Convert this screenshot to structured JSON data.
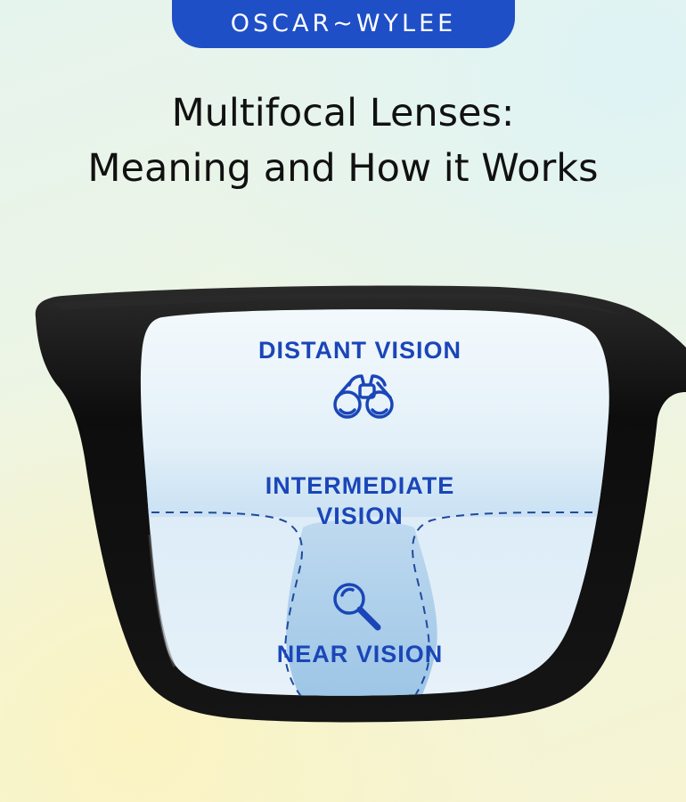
{
  "brand": {
    "logo_text": "OSCAR~WYLEE"
  },
  "heading": {
    "line1": "Multifocal Lenses:",
    "line2": "Meaning and How it Works"
  },
  "lens_zones": {
    "distant": "DISTANT VISION",
    "intermediate_line1": "INTERMEDIATE",
    "intermediate_line2": "VISION",
    "near": "NEAR VISION"
  },
  "icons": {
    "distant": "binoculars-icon",
    "near": "magnifying-glass-icon"
  },
  "colors": {
    "brand_blue": "#1e4fc7",
    "label_blue": "#1a46b8",
    "frame_black": "#111111"
  }
}
